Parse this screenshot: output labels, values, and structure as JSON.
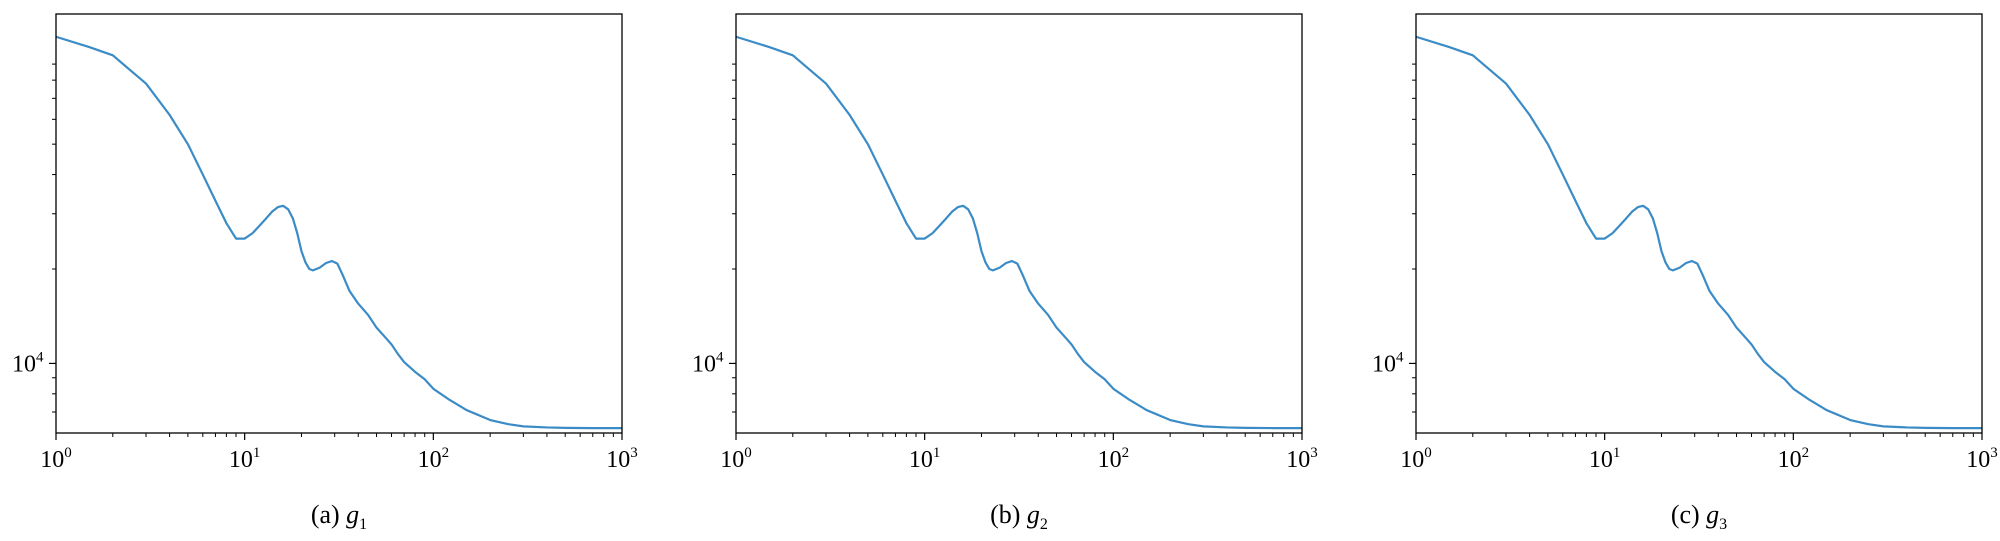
{
  "colors": {
    "line": "#3b8bc6",
    "axis": "#000000",
    "background": "#ffffff"
  },
  "chart_data": [
    {
      "type": "line",
      "caption_prefix": "(a)",
      "caption_var": "g",
      "caption_sub": "1",
      "xscale": "log",
      "yscale": "log",
      "xlim": [
        1,
        1000
      ],
      "ylim": [
        6000,
        130000
      ],
      "grid": false,
      "x_ticks": [
        {
          "base": "10",
          "exp": "0"
        },
        {
          "base": "10",
          "exp": "1"
        },
        {
          "base": "10",
          "exp": "2"
        },
        {
          "base": "10",
          "exp": "3"
        }
      ],
      "y_ticks": [
        {
          "base": "10",
          "exp": "4"
        }
      ],
      "series": [
        {
          "x": [
            1,
            1.5,
            2,
            3,
            4,
            5,
            6,
            7,
            8,
            9,
            10,
            11,
            12,
            13,
            14,
            15,
            16,
            17,
            18,
            19,
            20,
            21,
            22,
            23,
            25,
            27,
            29,
            31,
            33,
            36,
            40,
            45,
            50,
            55,
            60,
            65,
            70,
            80,
            90,
            100,
            120,
            150,
            200,
            250,
            300,
            400,
            500,
            700,
            1000
          ],
          "y": [
            110000,
            102000,
            96000,
            78000,
            62000,
            50000,
            40000,
            33000,
            28000,
            25000,
            25000,
            26000,
            27500,
            29000,
            30500,
            31500,
            31800,
            31000,
            29000,
            26000,
            22800,
            21000,
            20000,
            19800,
            20200,
            20900,
            21200,
            20800,
            19200,
            17000,
            15500,
            14300,
            13000,
            12200,
            11500,
            10700,
            10100,
            9400,
            8900,
            8300,
            7700,
            7100,
            6600,
            6400,
            6300,
            6250,
            6230,
            6220,
            6220
          ]
        }
      ]
    },
    {
      "type": "line",
      "caption_prefix": "(b)",
      "caption_var": "g",
      "caption_sub": "2",
      "xscale": "log",
      "yscale": "log",
      "xlim": [
        1,
        1000
      ],
      "ylim": [
        6000,
        130000
      ],
      "grid": false,
      "x_ticks": [
        {
          "base": "10",
          "exp": "0"
        },
        {
          "base": "10",
          "exp": "1"
        },
        {
          "base": "10",
          "exp": "2"
        },
        {
          "base": "10",
          "exp": "3"
        }
      ],
      "y_ticks": [
        {
          "base": "10",
          "exp": "4"
        }
      ],
      "series": [
        {
          "x": [
            1,
            1.5,
            2,
            3,
            4,
            5,
            6,
            7,
            8,
            9,
            10,
            11,
            12,
            13,
            14,
            15,
            16,
            17,
            18,
            19,
            20,
            21,
            22,
            23,
            25,
            27,
            29,
            31,
            33,
            36,
            40,
            45,
            50,
            55,
            60,
            65,
            70,
            80,
            90,
            100,
            120,
            150,
            200,
            250,
            300,
            400,
            500,
            700,
            1000
          ],
          "y": [
            110000,
            102000,
            96000,
            78000,
            62000,
            50000,
            40000,
            33000,
            28000,
            25000,
            25000,
            26000,
            27500,
            29000,
            30500,
            31500,
            31800,
            31000,
            29000,
            26000,
            22800,
            21000,
            20000,
            19800,
            20200,
            20900,
            21200,
            20800,
            19200,
            17000,
            15500,
            14300,
            13000,
            12200,
            11500,
            10700,
            10100,
            9400,
            8900,
            8300,
            7700,
            7100,
            6600,
            6400,
            6300,
            6250,
            6230,
            6220,
            6220
          ]
        }
      ]
    },
    {
      "type": "line",
      "caption_prefix": "(c)",
      "caption_var": "g",
      "caption_sub": "3",
      "xscale": "log",
      "yscale": "log",
      "xlim": [
        1,
        1000
      ],
      "ylim": [
        6000,
        130000
      ],
      "grid": false,
      "x_ticks": [
        {
          "base": "10",
          "exp": "0"
        },
        {
          "base": "10",
          "exp": "1"
        },
        {
          "base": "10",
          "exp": "2"
        },
        {
          "base": "10",
          "exp": "3"
        }
      ],
      "y_ticks": [
        {
          "base": "10",
          "exp": "4"
        }
      ],
      "series": [
        {
          "x": [
            1,
            1.5,
            2,
            3,
            4,
            5,
            6,
            7,
            8,
            9,
            10,
            11,
            12,
            13,
            14,
            15,
            16,
            17,
            18,
            19,
            20,
            21,
            22,
            23,
            25,
            27,
            29,
            31,
            33,
            36,
            40,
            45,
            50,
            55,
            60,
            65,
            70,
            80,
            90,
            100,
            120,
            150,
            200,
            250,
            300,
            400,
            500,
            700,
            1000
          ],
          "y": [
            110000,
            102000,
            96000,
            78000,
            62000,
            50000,
            40000,
            33000,
            28000,
            25000,
            25000,
            26000,
            27500,
            29000,
            30500,
            31500,
            31800,
            31000,
            29000,
            26000,
            22800,
            21000,
            20000,
            19800,
            20200,
            20900,
            21200,
            20800,
            19200,
            17000,
            15500,
            14300,
            13000,
            12200,
            11500,
            10700,
            10100,
            9400,
            8900,
            8300,
            7700,
            7100,
            6600,
            6400,
            6300,
            6250,
            6230,
            6220,
            6220
          ]
        }
      ]
    }
  ]
}
